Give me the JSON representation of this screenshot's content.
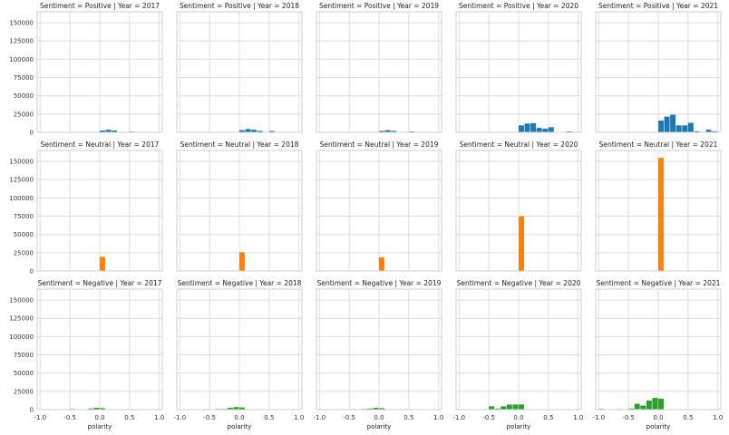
{
  "chart_data": {
    "type": "bar",
    "xlabel": "polarity",
    "ylabel": "",
    "xlim": [
      -1.05,
      1.05
    ],
    "ylim": [
      0,
      165000
    ],
    "xticks": [
      "-1.0",
      "-0.5",
      "0.0",
      "0.5",
      "1.0"
    ],
    "yticks": [
      "0",
      "25000",
      "50000",
      "75000",
      "100000",
      "125000",
      "150000"
    ],
    "grid": true,
    "bin_width": 0.1,
    "colors": {
      "Positive": "#1f77b4",
      "Neutral": "#ff7f0e",
      "Negative": "#2ca02c"
    },
    "years": [
      "2017",
      "2018",
      "2019",
      "2020",
      "2021"
    ],
    "sentiments": [
      "Positive",
      "Neutral",
      "Negative"
    ],
    "titles": {
      "Positive": [
        "Sentiment = Positive | Year = 2017",
        "Sentiment = Positive | Year = 2018",
        "Sentiment = Positive | Year = 2019",
        "Sentiment = Positive | Year = 2020",
        "Sentiment = Positive | Year = 2021"
      ],
      "Neutral": [
        "Sentiment = Neutral | Year = 2017",
        "Sentiment = Neutral | Year = 2018",
        "Sentiment = Neutral | Year = 2019",
        "Sentiment = Neutral | Year = 2020",
        "Sentiment = Neutral | Year = 2021"
      ],
      "Negative": [
        "Sentiment = Negative | Year = 2017",
        "Sentiment = Negative | Year = 2018",
        "Sentiment = Negative | Year = 2019",
        "Sentiment = Negative | Year = 2020",
        "Sentiment = Negative | Year = 2021"
      ]
    },
    "bars": {
      "Positive": {
        "2017": [
          [
            0.0,
            2500
          ],
          [
            0.1,
            3500
          ],
          [
            0.2,
            2500
          ],
          [
            0.3,
            600
          ],
          [
            0.5,
            1000
          ]
        ],
        "2018": [
          [
            0.0,
            3000
          ],
          [
            0.1,
            4500
          ],
          [
            0.2,
            3500
          ],
          [
            0.3,
            2000
          ],
          [
            0.5,
            1800
          ]
        ],
        "2019": [
          [
            0.0,
            2000
          ],
          [
            0.1,
            3000
          ],
          [
            0.2,
            2000
          ],
          [
            0.3,
            600
          ],
          [
            0.5,
            1200
          ]
        ],
        "2020": [
          [
            0.0,
            9500
          ],
          [
            0.1,
            12000
          ],
          [
            0.2,
            12500
          ],
          [
            0.3,
            6000
          ],
          [
            0.4,
            5000
          ],
          [
            0.5,
            7000
          ],
          [
            0.6,
            600
          ],
          [
            0.8,
            1200
          ]
        ],
        "2021": [
          [
            0.0,
            16000
          ],
          [
            0.1,
            21500
          ],
          [
            0.2,
            24000
          ],
          [
            0.3,
            9500
          ],
          [
            0.4,
            9500
          ],
          [
            0.5,
            13000
          ],
          [
            0.6,
            1500
          ],
          [
            0.8,
            3500
          ],
          [
            0.9,
            1500
          ]
        ]
      },
      "Neutral": {
        "2017": [
          [
            0.0,
            19500
          ]
        ],
        "2018": [
          [
            0.0,
            25500
          ]
        ],
        "2019": [
          [
            0.0,
            18500
          ]
        ],
        "2020": [
          [
            0.0,
            75000
          ]
        ],
        "2021": [
          [
            0.0,
            155000
          ]
        ]
      },
      "Negative": {
        "2017": [
          [
            -0.6,
            400
          ],
          [
            -0.5,
            1000
          ],
          [
            -0.3,
            300
          ],
          [
            -0.2,
            1500
          ],
          [
            -0.1,
            2500
          ],
          [
            0.0,
            2000
          ]
        ],
        "2018": [
          [
            -0.4,
            1000
          ],
          [
            -0.3,
            1000
          ],
          [
            -0.2,
            2500
          ],
          [
            -0.1,
            3500
          ],
          [
            0.0,
            3000
          ]
        ],
        "2019": [
          [
            -0.5,
            500
          ],
          [
            -0.3,
            1000
          ],
          [
            -0.2,
            1500
          ],
          [
            -0.1,
            2500
          ],
          [
            0.0,
            2000
          ]
        ],
        "2020": [
          [
            -0.6,
            600
          ],
          [
            -0.5,
            4500
          ],
          [
            -0.4,
            1500
          ],
          [
            -0.3,
            4500
          ],
          [
            -0.2,
            7000
          ],
          [
            -0.1,
            7000
          ],
          [
            0.0,
            7000
          ]
        ],
        "2021": [
          [
            -1.0,
            1000
          ],
          [
            -0.7,
            800
          ],
          [
            -0.5,
            1500
          ],
          [
            -0.4,
            8000
          ],
          [
            -0.3,
            5500
          ],
          [
            -0.2,
            12500
          ],
          [
            -0.1,
            16000
          ],
          [
            0.0,
            15000
          ]
        ]
      }
    }
  }
}
